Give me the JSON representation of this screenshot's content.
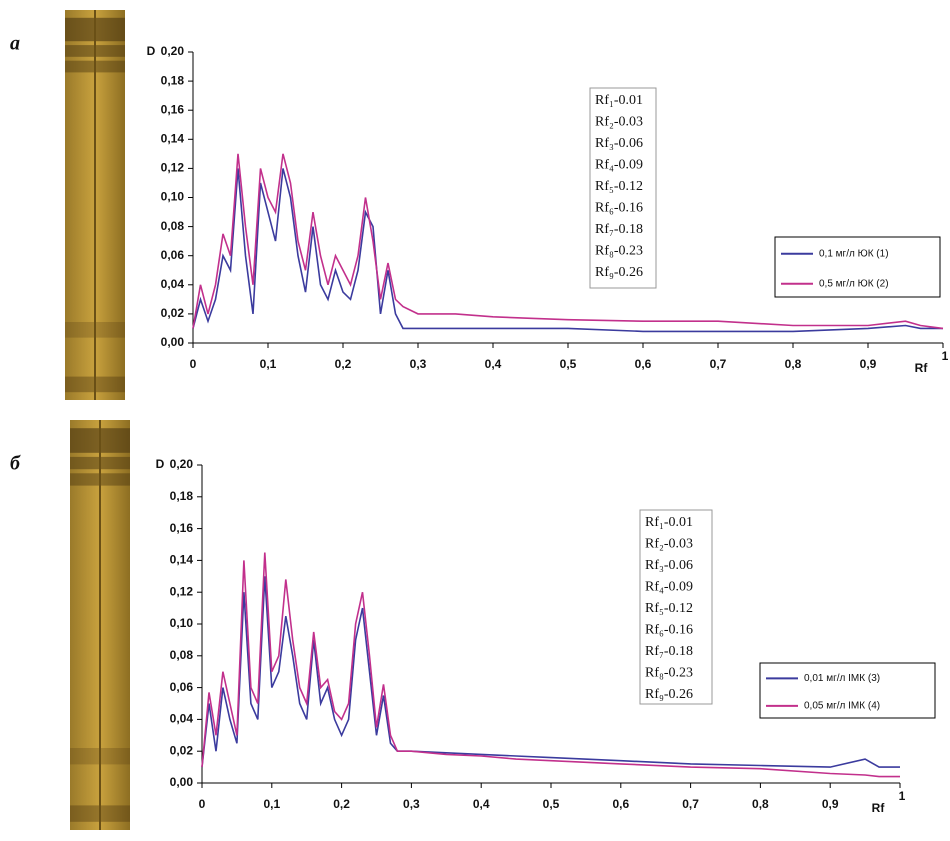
{
  "chart_data": [
    {
      "type": "line",
      "label": "а",
      "y_label": "D",
      "x_label": "Rf",
      "x": [
        0,
        0.01,
        0.02,
        0.03,
        0.04,
        0.05,
        0.06,
        0.07,
        0.08,
        0.09,
        0.1,
        0.11,
        0.12,
        0.13,
        0.14,
        0.15,
        0.16,
        0.17,
        0.18,
        0.19,
        0.2,
        0.21,
        0.22,
        0.23,
        0.24,
        0.25,
        0.26,
        0.27,
        0.28,
        0.3,
        0.35,
        0.4,
        0.45,
        0.5,
        0.6,
        0.7,
        0.8,
        0.9,
        0.95,
        0.97,
        1
      ],
      "series": [
        {
          "name": "0,1 мг/л ЮК (1)",
          "color": "#3b3b9e",
          "values": [
            0.01,
            0.03,
            0.015,
            0.03,
            0.06,
            0.05,
            0.12,
            0.06,
            0.02,
            0.11,
            0.09,
            0.07,
            0.12,
            0.1,
            0.06,
            0.035,
            0.08,
            0.04,
            0.03,
            0.05,
            0.035,
            0.03,
            0.05,
            0.09,
            0.08,
            0.02,
            0.05,
            0.02,
            0.01,
            0.01,
            0.01,
            0.01,
            0.01,
            0.01,
            0.008,
            0.008,
            0.008,
            0.01,
            0.012,
            0.01,
            0.01
          ]
        },
        {
          "name": "0,5 мг/л ЮК (2)",
          "color": "#c2308c",
          "values": [
            0.01,
            0.04,
            0.02,
            0.04,
            0.075,
            0.06,
            0.13,
            0.08,
            0.04,
            0.12,
            0.1,
            0.09,
            0.13,
            0.11,
            0.07,
            0.05,
            0.09,
            0.06,
            0.04,
            0.06,
            0.05,
            0.04,
            0.06,
            0.1,
            0.07,
            0.03,
            0.055,
            0.03,
            0.025,
            0.02,
            0.02,
            0.018,
            0.017,
            0.016,
            0.015,
            0.015,
            0.012,
            0.012,
            0.015,
            0.012,
            0.01
          ]
        }
      ],
      "xlim": [
        0,
        1
      ],
      "xticks": [
        0,
        {
          "value": 0.1,
          "label": "0,1"
        },
        {
          "value": 0.2,
          "label": "0,2"
        },
        {
          "value": 0.3,
          "label": "0,3"
        },
        {
          "value": 0.4,
          "label": "0,4"
        },
        {
          "value": 0.5,
          "label": "0,5"
        },
        {
          "value": 0.6,
          "label": "0,6"
        },
        {
          "value": 0.7,
          "label": "0,7"
        },
        {
          "value": 0.8,
          "label": "0,8"
        },
        {
          "value": 0.9,
          "label": "0,9"
        },
        1
      ],
      "ylim": [
        0,
        0.2
      ],
      "yticks": [
        {
          "value": 0,
          "label": "0,00"
        },
        {
          "value": 0.02,
          "label": "0,02"
        },
        {
          "value": 0.04,
          "label": "0,04"
        },
        {
          "value": 0.06,
          "label": "0,06"
        },
        {
          "value": 0.08,
          "label": "0,08"
        },
        {
          "value": 0.1,
          "label": "0,10"
        },
        {
          "value": 0.12,
          "label": "0,12"
        },
        {
          "value": 0.14,
          "label": "0,14"
        },
        {
          "value": 0.16,
          "label": "0,16"
        },
        {
          "value": 0.18,
          "label": "0,18"
        },
        {
          "value": 0.2,
          "label": "0,20"
        }
      ],
      "annotations": [
        "Rf₁-0.01",
        "Rf₂-0.03",
        "Rf₃-0.06",
        "Rf₄-0.09",
        "Rf₅-0.12",
        "Rf₆-0.16",
        "Rf₇-0.18",
        "Rf₈-0.23",
        "Rf₉-0.26"
      ],
      "legend": "lower right"
    },
    {
      "type": "line",
      "label": "б",
      "y_label": "D",
      "x_label": "Rf",
      "x": [
        0,
        0.01,
        0.02,
        0.03,
        0.04,
        0.05,
        0.06,
        0.07,
        0.08,
        0.09,
        0.1,
        0.11,
        0.12,
        0.13,
        0.14,
        0.15,
        0.16,
        0.17,
        0.18,
        0.19,
        0.2,
        0.21,
        0.22,
        0.23,
        0.24,
        0.25,
        0.26,
        0.27,
        0.28,
        0.3,
        0.35,
        0.4,
        0.45,
        0.5,
        0.6,
        0.7,
        0.8,
        0.9,
        0.95,
        0.97,
        1
      ],
      "series": [
        {
          "name": "0,01 мг/л ІМК (3)",
          "color": "#3b3b9e",
          "values": [
            0.01,
            0.05,
            0.02,
            0.06,
            0.04,
            0.025,
            0.12,
            0.05,
            0.04,
            0.13,
            0.06,
            0.07,
            0.105,
            0.08,
            0.05,
            0.04,
            0.09,
            0.05,
            0.06,
            0.04,
            0.03,
            0.04,
            0.09,
            0.11,
            0.07,
            0.03,
            0.055,
            0.025,
            0.02,
            0.02,
            0.019,
            0.018,
            0.017,
            0.016,
            0.014,
            0.012,
            0.011,
            0.01,
            0.015,
            0.01,
            0.01
          ]
        },
        {
          "name": "0,05 мг/л ІМК (4)",
          "color": "#c2308c",
          "values": [
            0.01,
            0.057,
            0.03,
            0.07,
            0.05,
            0.03,
            0.14,
            0.06,
            0.05,
            0.145,
            0.07,
            0.08,
            0.128,
            0.09,
            0.06,
            0.05,
            0.095,
            0.06,
            0.065,
            0.045,
            0.04,
            0.05,
            0.1,
            0.12,
            0.08,
            0.035,
            0.062,
            0.03,
            0.02,
            0.02,
            0.018,
            0.017,
            0.015,
            0.014,
            0.012,
            0.01,
            0.009,
            0.006,
            0.005,
            0.004,
            0.004
          ]
        }
      ],
      "xlim": [
        0,
        1
      ],
      "xticks": [
        0,
        {
          "value": 0.1,
          "label": "0,1"
        },
        {
          "value": 0.2,
          "label": "0,2"
        },
        {
          "value": 0.3,
          "label": "0,3"
        },
        {
          "value": 0.4,
          "label": "0,4"
        },
        {
          "value": 0.5,
          "label": "0,5"
        },
        {
          "value": 0.6,
          "label": "0,6"
        },
        {
          "value": 0.7,
          "label": "0,7"
        },
        {
          "value": 0.8,
          "label": "0,8"
        },
        {
          "value": 0.9,
          "label": "0,9"
        },
        1
      ],
      "ylim": [
        0,
        0.2
      ],
      "yticks": [
        {
          "value": 0,
          "label": "0,00"
        },
        {
          "value": 0.02,
          "label": "0,02"
        },
        {
          "value": 0.04,
          "label": "0,04"
        },
        {
          "value": 0.06,
          "label": "0,06"
        },
        {
          "value": 0.08,
          "label": "0,08"
        },
        {
          "value": 0.1,
          "label": "0,10"
        },
        {
          "value": 0.12,
          "label": "0,12"
        },
        {
          "value": 0.14,
          "label": "0,14"
        },
        {
          "value": 0.16,
          "label": "0,16"
        },
        {
          "value": 0.18,
          "label": "0,18"
        },
        {
          "value": 0.2,
          "label": "0,20"
        }
      ],
      "annotations": [
        "Rf₁-0.01",
        "Rf₂-0.03",
        "Rf₃-0.06",
        "Rf₄-0.09",
        "Rf₅-0.12",
        "Rf₆-0.16",
        "Rf₇-0.18",
        "Rf₈-0.23",
        "Rf₉-0.26"
      ],
      "legend": "lower right"
    }
  ]
}
